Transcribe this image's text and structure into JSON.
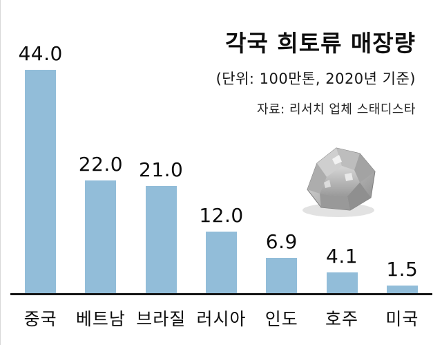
{
  "header": {
    "title": "각국 희토류 매장량",
    "subtitle": "(단위: 100만톤, 2020년 기준)",
    "source": "자료: 리서치 업체 스태디스타"
  },
  "chart_data": {
    "type": "bar",
    "title": "각국 희토류 매장량",
    "subtitle": "(단위: 100만톤, 2020년 기준)",
    "source": "자료: 리서치 업체 스태디스타",
    "categories": [
      "중국",
      "베트남",
      "브라질",
      "러시아",
      "인도",
      "호주",
      "미국"
    ],
    "values": [
      44.0,
      22.0,
      21.0,
      12.0,
      6.9,
      4.1,
      1.5
    ],
    "value_labels": [
      "44.0",
      "22.0",
      "21.0",
      "12.0",
      "6.9",
      "4.1",
      "1.5"
    ],
    "xlabel": "",
    "ylabel": "",
    "ylim": [
      0,
      44
    ],
    "grid": false,
    "legend": "none",
    "bar_color": "#92bdd9",
    "axis_color": "#141414",
    "illustration": "rare-earth-mineral-rock"
  }
}
